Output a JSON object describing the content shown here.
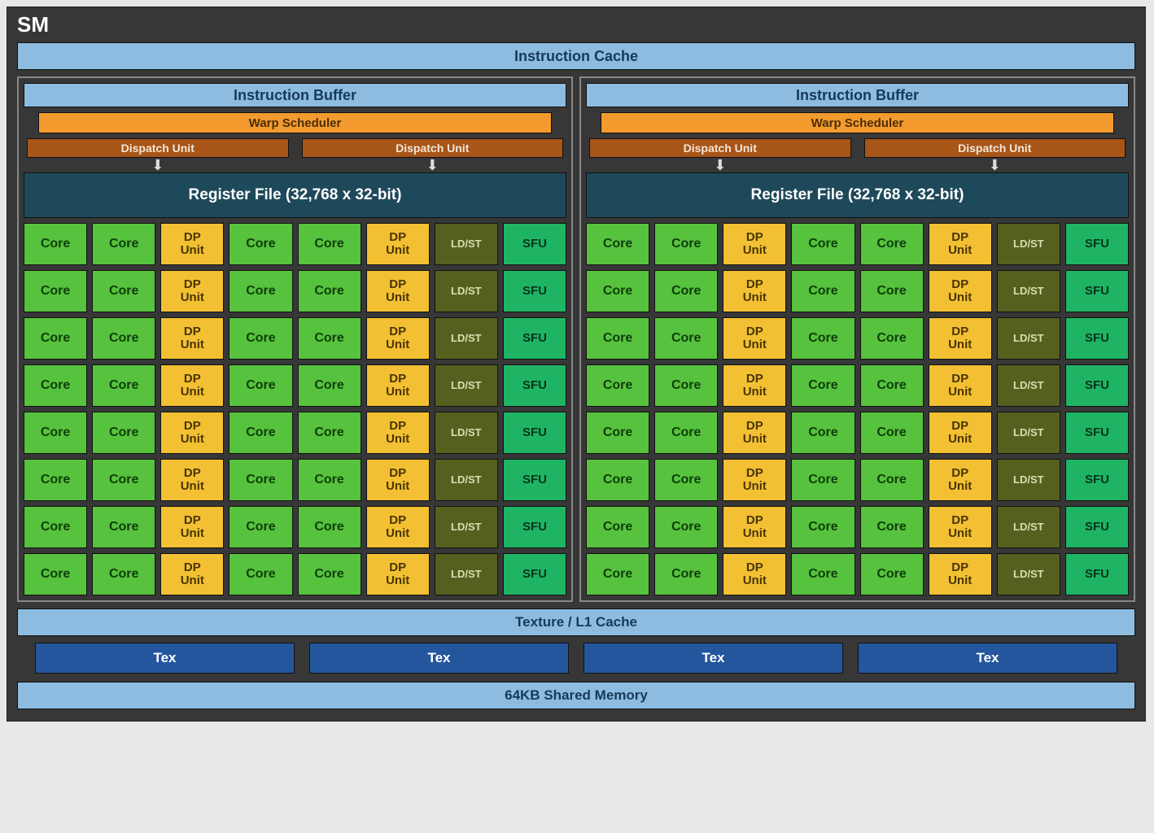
{
  "colors": {
    "bg": "#373737",
    "lightblue": "#8dbce0",
    "lightblue_text": "#163a58",
    "orange": "#f39b2e",
    "orange_text": "#4a2d05",
    "darkorange": "#a85518",
    "darkorange_text": "#f4e6d6",
    "teal": "#1e495a",
    "teal_text": "#ffffff",
    "core": "#57c23d",
    "core_text": "#0d3e0a",
    "dp": "#f2c032",
    "dp_text": "#4a3505",
    "ldst": "#55601f",
    "ldst_text": "#d8dfae",
    "sfu": "#1fb464",
    "sfu_text": "#06341a",
    "navy": "#24569e",
    "navy_text": "#ffffff"
  },
  "sm_title": "SM",
  "instruction_cache": "Instruction Cache",
  "instruction_buffer": "Instruction Buffer",
  "warp_scheduler": "Warp Scheduler",
  "dispatch_unit": "Dispatch Unit",
  "register_file": "Register File (32,768 x 32-bit)",
  "units": {
    "core": "Core",
    "dp": "DP\nUnit",
    "ldst": "LD/ST",
    "sfu": "SFU"
  },
  "row_pattern": [
    "core",
    "core",
    "dp",
    "core",
    "core",
    "dp",
    "ldst",
    "sfu"
  ],
  "rows_per_half": 8,
  "texture_cache": "Texture / L1 Cache",
  "tex": "Tex",
  "tex_count": 4,
  "shared_memory": "64KB Shared Memory",
  "font_sizes": {
    "core": 16,
    "dp": 15,
    "ldst": 13,
    "sfu": 15
  }
}
